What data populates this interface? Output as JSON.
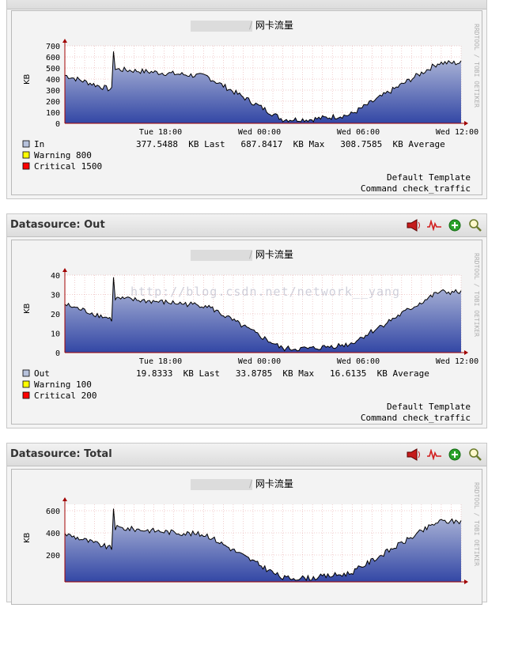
{
  "panels": [
    {
      "id": "in",
      "header": "",
      "graph": {
        "title": "/ 网卡流量",
        "ylabel": "KB",
        "side_text": "RRDTOOL / TOBI OETIKER",
        "yticks": [
          "700",
          "600",
          "500",
          "400",
          "300",
          "200",
          "100",
          "0"
        ],
        "xticks": [
          "Tue 18:00",
          "Wed 00:00",
          "Wed 06:00",
          "Wed 12:00"
        ],
        "legend": [
          {
            "color": "#b7c2dc",
            "name": "In",
            "stats": "377.5488  KB Last   687.8417  KB Max   308.7585  KB Average"
          },
          {
            "color": "#ffff00",
            "name": "Warning  800",
            "stats": ""
          },
          {
            "color": "#ff0000",
            "name": "Critical 1500",
            "stats": ""
          }
        ],
        "footer": [
          "Default Template",
          "Command check_traffic"
        ]
      }
    },
    {
      "id": "out",
      "header": "Datasource: Out",
      "graph": {
        "title": "/ 网卡流量",
        "ylabel": "KB",
        "side_text": "RRDTOOL / TOBI OETIKER",
        "yticks": [
          "40",
          "30",
          "20",
          "10",
          "0"
        ],
        "xticks": [
          "Tue 18:00",
          "Wed 00:00",
          "Wed 06:00",
          "Wed 12:00"
        ],
        "legend": [
          {
            "color": "#b7c2dc",
            "name": "Out",
            "stats": "19.8333  KB Last   33.8785  KB Max   16.6135  KB Average"
          },
          {
            "color": "#ffff00",
            "name": "Warning  100",
            "stats": ""
          },
          {
            "color": "#ff0000",
            "name": "Critical 200",
            "stats": ""
          }
        ],
        "footer": [
          "Default Template",
          "Command check_traffic"
        ]
      }
    },
    {
      "id": "total",
      "header": "Datasource: Total",
      "graph": {
        "title": "/ 网卡流量",
        "ylabel": "KB",
        "side_text": "RRDTOOL / TOBI OETIKER",
        "yticks": [
          "600",
          "400",
          "200"
        ],
        "xticks": [],
        "legend": [],
        "footer": []
      }
    }
  ],
  "watermark": "http://blog.csdn.net/network__yang",
  "icons": [
    "alert-speaker-icon",
    "graph-wave-icon",
    "add-plus-icon",
    "zoom-magnifier-icon"
  ],
  "colors": {
    "area_top": "#b8c0dc",
    "area_bottom": "#3347a5",
    "line": "#000000",
    "grid": "#e39b9b",
    "axis": "#a00000"
  }
}
